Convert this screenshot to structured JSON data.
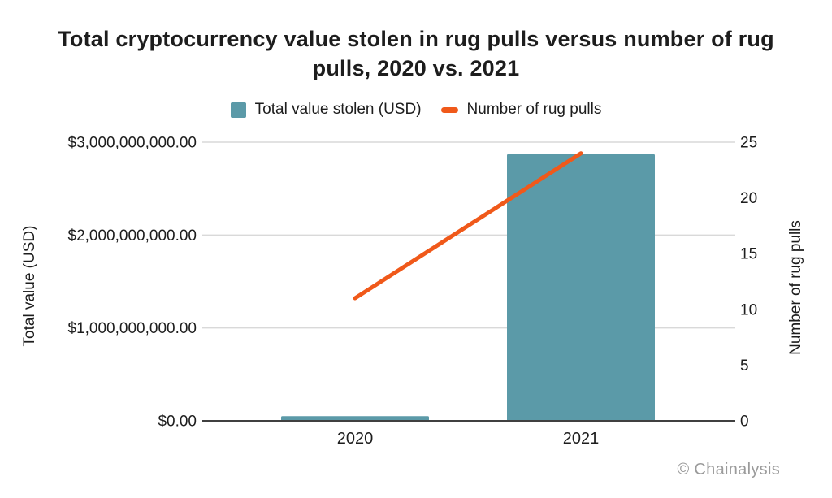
{
  "header": {
    "title_lines": [
      "Total cryptocurrency value stolen in rug pulls versus number of rug",
      "pulls, 2020 vs. 2021"
    ]
  },
  "legend": {
    "items": [
      {
        "label": "Total value stolen (USD)",
        "swatch": "bar-swatch",
        "color": "#5b9aa8"
      },
      {
        "label": "Number of rug pulls",
        "swatch": "line-swatch",
        "color": "#f0591a"
      }
    ]
  },
  "chart_data": {
    "type": "combo-bar-line",
    "title": "Total cryptocurrency value stolen in rug pulls versus number of rug pulls, 2020 vs. 2021",
    "categories": [
      "2020",
      "2021"
    ],
    "series": [
      {
        "name": "Total value stolen (USD)",
        "type": "bar",
        "axis": "left",
        "color": "#5b9aa8",
        "values": [
          50000000,
          2870000000
        ]
      },
      {
        "name": "Number of rug pulls",
        "type": "line",
        "axis": "right",
        "color": "#f0591a",
        "values": [
          11,
          24
        ]
      }
    ],
    "left_axis": {
      "title": "Total value (USD)",
      "lim": [
        0,
        3000000000
      ],
      "ticks": [
        {
          "value": 0,
          "label": "$0.00"
        },
        {
          "value": 1000000000,
          "label": "$1,000,000,000.00"
        },
        {
          "value": 2000000000,
          "label": "$2,000,000,000.00"
        },
        {
          "value": 3000000000,
          "label": "$3,000,000,000.00"
        }
      ]
    },
    "right_axis": {
      "title": "Number of rug pulls",
      "lim": [
        0,
        25
      ],
      "ticks": [
        {
          "value": 0,
          "label": "0"
        },
        {
          "value": 5,
          "label": "5"
        },
        {
          "value": 10,
          "label": "10"
        },
        {
          "value": 15,
          "label": "15"
        },
        {
          "value": 20,
          "label": "20"
        },
        {
          "value": 25,
          "label": "25"
        }
      ]
    },
    "grid": "horizontal",
    "legend_position": "top"
  },
  "footer": {
    "credit": "© Chainalysis"
  },
  "colors": {
    "bar": "#5b9aa8",
    "line": "#f0591a",
    "grid": "#d9d9d9",
    "axis": "#404040",
    "text": "#1d1d1d",
    "credit": "#9b9b9b",
    "background": "#ffffff"
  }
}
